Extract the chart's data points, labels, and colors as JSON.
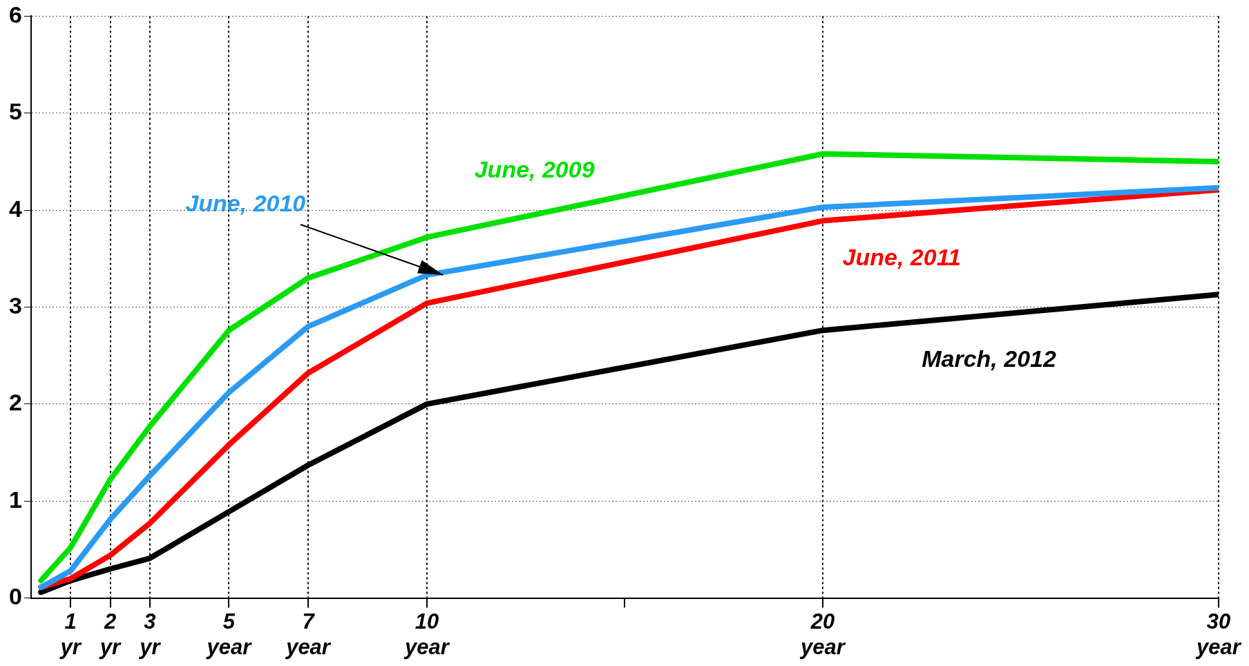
{
  "chart_data": {
    "type": "line",
    "x": [
      0.25,
      1,
      2,
      3,
      5,
      7,
      10,
      20,
      30
    ],
    "series": [
      {
        "name": "June, 2009",
        "color": "#00e000",
        "values": [
          0.18,
          0.52,
          1.22,
          1.77,
          2.76,
          3.3,
          3.72,
          4.58,
          4.5
        ]
      },
      {
        "name": "June, 2010",
        "color": "#2b9af3",
        "values": [
          0.11,
          0.28,
          0.81,
          1.26,
          2.12,
          2.8,
          3.33,
          4.03,
          4.23
        ]
      },
      {
        "name": "June, 2011",
        "color": "#ff0000",
        "values": [
          0.11,
          0.2,
          0.44,
          0.77,
          1.58,
          2.32,
          3.04,
          3.89,
          4.21
        ]
      },
      {
        "name": "March, 2012",
        "color": "#000000",
        "values": [
          0.06,
          0.18,
          0.3,
          0.41,
          0.89,
          1.37,
          2.0,
          2.76,
          3.13
        ]
      }
    ],
    "xlim": [
      0,
      30
    ],
    "xticks": [
      {
        "value": 1,
        "label": "1 yr"
      },
      {
        "value": 2,
        "label": "2 yr"
      },
      {
        "value": 3,
        "label": "3 yr"
      },
      {
        "value": 5,
        "label": "5 year"
      },
      {
        "value": 7,
        "label": "7 year"
      },
      {
        "value": 10,
        "label": "10 year"
      },
      {
        "value": 15,
        "label": null
      },
      {
        "value": 20,
        "label": "20 year"
      },
      {
        "value": 30,
        "label": "30 year"
      }
    ],
    "ylim": [
      0,
      6
    ],
    "yticks": [
      0,
      1,
      2,
      3,
      4,
      5,
      6
    ],
    "grid": true,
    "legend": false,
    "marker": "none",
    "line_style": "solid"
  }
}
